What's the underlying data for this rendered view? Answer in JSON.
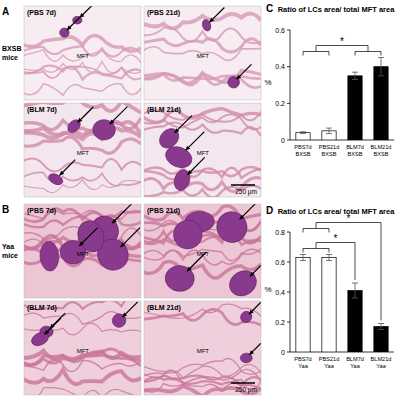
{
  "figure": {
    "panels": [
      {
        "letter": "A",
        "strain": "BXSB mice",
        "images": [
          {
            "label": "(PBS 7d)"
          },
          {
            "label": "(PBS 21d)"
          },
          {
            "label": "(BLM 7d)"
          },
          {
            "label": "(BLM 21d)"
          }
        ],
        "tissue_label": "MFT",
        "scale_bar": "250 μm"
      },
      {
        "letter": "B",
        "strain": "Yaa mice",
        "images": [
          {
            "label": "(PBS 7d)"
          },
          {
            "label": "(PBS 21d)"
          },
          {
            "label": "(BLM 7d)"
          },
          {
            "label": "(BLM 21d)"
          }
        ],
        "tissue_label": "MFT",
        "scale_bar": "250 μm"
      }
    ],
    "chart_letters": [
      "C",
      "D"
    ]
  },
  "chart_data": [
    {
      "type": "bar",
      "title": "Ratio of LCs area/ total MFT area",
      "y_label": "%",
      "categories": [
        "PBS7d BXSB",
        "PBS21d BXSB",
        "BLM7d BXSB",
        "BLM21d BXSB"
      ],
      "values": [
        0.04,
        0.05,
        0.35,
        0.4
      ],
      "errors": [
        0.005,
        0.015,
        0.02,
        0.05
      ],
      "colors": [
        "#ffffff",
        "#ffffff",
        "#000000",
        "#000000"
      ],
      "ylim": [
        0,
        0.6
      ],
      "yticks": [
        0,
        0.2,
        0.4,
        0.6
      ],
      "grid": false,
      "annotations": [
        {
          "text": "*",
          "between": [
            [
              "PBS7d BXSB",
              "PBS21d BXSB"
            ],
            [
              "BLM7d BXSB",
              "BLM21d BXSB"
            ]
          ]
        }
      ]
    },
    {
      "type": "bar",
      "title": "Ratio of LCs area/ total MFT area",
      "y_label": "%",
      "categories": [
        "PBS7d Yaa",
        "PBS21d Yaa",
        "BLM7d Yaa",
        "BLM21d Yaa"
      ],
      "values": [
        0.63,
        0.63,
        0.41,
        0.17
      ],
      "errors": [
        0.02,
        0.02,
        0.05,
        0.02
      ],
      "colors": [
        "#ffffff",
        "#ffffff",
        "#000000",
        "#000000"
      ],
      "ylim": [
        0,
        0.8
      ],
      "yticks": [
        0,
        0.2,
        0.4,
        0.6,
        0.8
      ],
      "grid": false,
      "annotations": [
        {
          "text": "*",
          "between": [
            [
              "PBS7d Yaa",
              "PBS21d Yaa"
            ],
            [
              "BLM7d Yaa"
            ]
          ]
        },
        {
          "text": "*",
          "between": [
            [
              "PBS7d Yaa",
              "PBS21d Yaa"
            ],
            [
              "BLM21d Yaa"
            ]
          ]
        }
      ]
    }
  ]
}
